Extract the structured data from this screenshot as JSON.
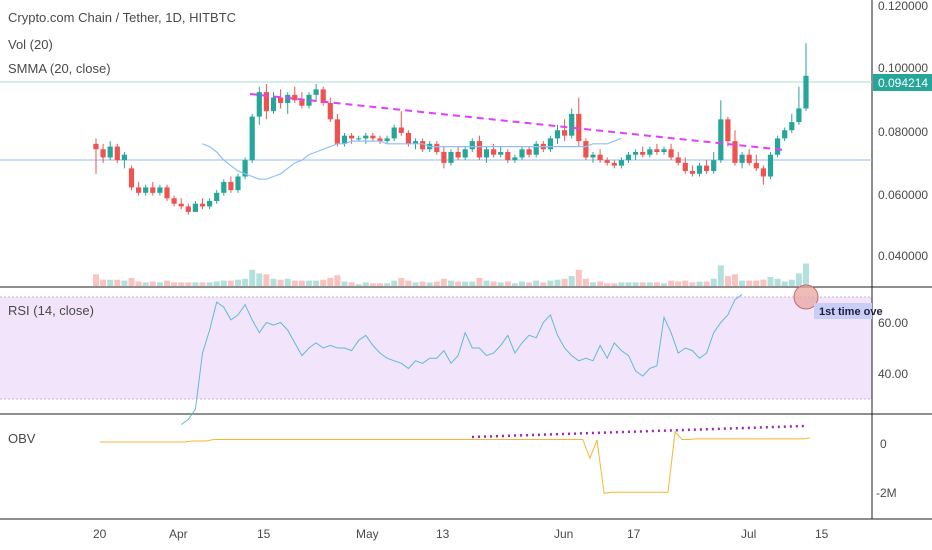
{
  "chart_data": {
    "type": "candlestick",
    "title": "Crypto.com Chain / Tether, 1D, HITBTC",
    "indicators": {
      "volume": "Vol (20)",
      "smma": "SMMA (20, close)",
      "rsi": "RSI (14, close)",
      "obv": "OBV"
    },
    "annotations": {
      "rsi_note": "1st time ove",
      "last_price": "0.094214"
    },
    "price_axis": {
      "ticks": [
        "0.120000",
        "0.100000",
        "0.080000",
        "0.060000",
        "0.040000"
      ],
      "ylim": [
        0.03,
        0.12
      ]
    },
    "rsi_axis": {
      "ticks": [
        "60.00",
        "40.00"
      ],
      "upper_band": 70,
      "lower_band": 30
    },
    "obv_axis": {
      "ticks": [
        "0",
        "-2M"
      ]
    },
    "x_labels": [
      "20",
      "Apr",
      "15",
      "May",
      "13",
      "Jun",
      "17",
      "Jul",
      "15"
    ],
    "colors": {
      "up": "#26a69a",
      "down": "#ef5350",
      "smma": "#90bff9",
      "trend": "#e040fb",
      "rsi_line": "#5fbcd3",
      "rsi_fill": "#f1e4fb",
      "obv_line": "#f7b733",
      "obv_trend": "#9c27b0",
      "price_line": "#a7ddd6"
    },
    "candles": [
      [
        0.069,
        0.071,
        0.058,
        0.067
      ],
      [
        0.067,
        0.069,
        0.062,
        0.064
      ],
      [
        0.064,
        0.07,
        0.063,
        0.068
      ],
      [
        0.068,
        0.069,
        0.062,
        0.063
      ],
      [
        0.063,
        0.066,
        0.06,
        0.065
      ],
      [
        0.06,
        0.061,
        0.052,
        0.053
      ],
      [
        0.053,
        0.055,
        0.05,
        0.051
      ],
      [
        0.051,
        0.054,
        0.05,
        0.053
      ],
      [
        0.053,
        0.055,
        0.05,
        0.051
      ],
      [
        0.051,
        0.054,
        0.05,
        0.053
      ],
      [
        0.053,
        0.054,
        0.048,
        0.049
      ],
      [
        0.049,
        0.05,
        0.046,
        0.047
      ],
      [
        0.047,
        0.049,
        0.045,
        0.046
      ],
      [
        0.046,
        0.047,
        0.043,
        0.044
      ],
      [
        0.044,
        0.048,
        0.044,
        0.047
      ],
      [
        0.047,
        0.049,
        0.045,
        0.046
      ],
      [
        0.046,
        0.049,
        0.045,
        0.048
      ],
      [
        0.048,
        0.052,
        0.047,
        0.051
      ],
      [
        0.051,
        0.056,
        0.05,
        0.055
      ],
      [
        0.055,
        0.057,
        0.051,
        0.052
      ],
      [
        0.052,
        0.058,
        0.051,
        0.057
      ],
      [
        0.057,
        0.064,
        0.056,
        0.063
      ],
      [
        0.063,
        0.08,
        0.062,
        0.079
      ],
      [
        0.079,
        0.09,
        0.076,
        0.088
      ],
      [
        0.088,
        0.091,
        0.078,
        0.081
      ],
      [
        0.081,
        0.088,
        0.08,
        0.086
      ],
      [
        0.086,
        0.089,
        0.082,
        0.084
      ],
      [
        0.084,
        0.088,
        0.08,
        0.087
      ],
      [
        0.087,
        0.09,
        0.084,
        0.085
      ],
      [
        0.085,
        0.088,
        0.082,
        0.083
      ],
      [
        0.083,
        0.088,
        0.082,
        0.087
      ],
      [
        0.087,
        0.091,
        0.085,
        0.089
      ],
      [
        0.089,
        0.09,
        0.083,
        0.084
      ],
      [
        0.084,
        0.086,
        0.077,
        0.078
      ],
      [
        0.078,
        0.08,
        0.068,
        0.069
      ],
      [
        0.069,
        0.073,
        0.068,
        0.072
      ],
      [
        0.072,
        0.073,
        0.069,
        0.071
      ],
      [
        0.071,
        0.072,
        0.07,
        0.071
      ],
      [
        0.071,
        0.073,
        0.069,
        0.072
      ],
      [
        0.072,
        0.073,
        0.07,
        0.071
      ],
      [
        0.071,
        0.072,
        0.069,
        0.07
      ],
      [
        0.07,
        0.072,
        0.069,
        0.071
      ],
      [
        0.071,
        0.076,
        0.07,
        0.075
      ],
      [
        0.075,
        0.081,
        0.072,
        0.073
      ],
      [
        0.073,
        0.074,
        0.068,
        0.069
      ],
      [
        0.069,
        0.071,
        0.067,
        0.07
      ],
      [
        0.07,
        0.071,
        0.066,
        0.067
      ],
      [
        0.067,
        0.07,
        0.066,
        0.069
      ],
      [
        0.069,
        0.07,
        0.065,
        0.066
      ],
      [
        0.066,
        0.068,
        0.06,
        0.062
      ],
      [
        0.062,
        0.067,
        0.061,
        0.066
      ],
      [
        0.066,
        0.068,
        0.063,
        0.064
      ],
      [
        0.064,
        0.068,
        0.063,
        0.067
      ],
      [
        0.067,
        0.071,
        0.066,
        0.07
      ],
      [
        0.07,
        0.072,
        0.063,
        0.064
      ],
      [
        0.064,
        0.068,
        0.062,
        0.067
      ],
      [
        0.067,
        0.069,
        0.064,
        0.065
      ],
      [
        0.065,
        0.068,
        0.064,
        0.066
      ],
      [
        0.066,
        0.067,
        0.062,
        0.063
      ],
      [
        0.063,
        0.065,
        0.062,
        0.064
      ],
      [
        0.064,
        0.068,
        0.063,
        0.067
      ],
      [
        0.067,
        0.068,
        0.064,
        0.065
      ],
      [
        0.065,
        0.07,
        0.064,
        0.069
      ],
      [
        0.069,
        0.07,
        0.066,
        0.067
      ],
      [
        0.067,
        0.072,
        0.066,
        0.071
      ],
      [
        0.071,
        0.076,
        0.069,
        0.074
      ],
      [
        0.074,
        0.078,
        0.07,
        0.072
      ],
      [
        0.072,
        0.082,
        0.071,
        0.08
      ],
      [
        0.08,
        0.086,
        0.068,
        0.07
      ],
      [
        0.07,
        0.071,
        0.063,
        0.064
      ],
      [
        0.064,
        0.066,
        0.062,
        0.065
      ],
      [
        0.065,
        0.067,
        0.062,
        0.063
      ],
      [
        0.063,
        0.064,
        0.061,
        0.062
      ],
      [
        0.062,
        0.063,
        0.06,
        0.061
      ],
      [
        0.061,
        0.064,
        0.06,
        0.063
      ],
      [
        0.063,
        0.066,
        0.062,
        0.065
      ],
      [
        0.065,
        0.067,
        0.063,
        0.066
      ],
      [
        0.066,
        0.068,
        0.064,
        0.065
      ],
      [
        0.065,
        0.068,
        0.064,
        0.067
      ],
      [
        0.067,
        0.069,
        0.065,
        0.066
      ],
      [
        0.066,
        0.068,
        0.065,
        0.067
      ],
      [
        0.067,
        0.069,
        0.063,
        0.064
      ],
      [
        0.064,
        0.066,
        0.061,
        0.062
      ],
      [
        0.062,
        0.064,
        0.058,
        0.059
      ],
      [
        0.059,
        0.061,
        0.057,
        0.058
      ],
      [
        0.058,
        0.062,
        0.057,
        0.061
      ],
      [
        0.061,
        0.063,
        0.058,
        0.059
      ],
      [
        0.059,
        0.066,
        0.058,
        0.063
      ],
      [
        0.063,
        0.085,
        0.062,
        0.078
      ],
      [
        0.078,
        0.079,
        0.068,
        0.07
      ],
      [
        0.07,
        0.074,
        0.061,
        0.062
      ],
      [
        0.062,
        0.066,
        0.06,
        0.065
      ],
      [
        0.065,
        0.067,
        0.061,
        0.062
      ],
      [
        0.062,
        0.065,
        0.059,
        0.06
      ],
      [
        0.06,
        0.061,
        0.054,
        0.057
      ],
      [
        0.057,
        0.066,
        0.056,
        0.065
      ],
      [
        0.065,
        0.072,
        0.064,
        0.071
      ],
      [
        0.071,
        0.075,
        0.07,
        0.074
      ],
      [
        0.074,
        0.08,
        0.073,
        0.077
      ],
      [
        0.077,
        0.09,
        0.076,
        0.082
      ],
      [
        0.082,
        0.106,
        0.081,
        0.094
      ]
    ],
    "smma": [
      0.069,
      0.068,
      0.066,
      0.063,
      0.061,
      0.059,
      0.058,
      0.057,
      0.056,
      0.056,
      0.057,
      0.058,
      0.06,
      0.062,
      0.063,
      0.065,
      0.066,
      0.067,
      0.068,
      0.069,
      0.069,
      0.07,
      0.07,
      0.07,
      0.07,
      0.07,
      0.069,
      0.069,
      0.069,
      0.069,
      0.069,
      0.069,
      0.068,
      0.068,
      0.068,
      0.068,
      0.068,
      0.068,
      0.068,
      0.068,
      0.068,
      0.068,
      0.068,
      0.068,
      0.068,
      0.068,
      0.068,
      0.068,
      0.068,
      0.068,
      0.068,
      0.068,
      0.068,
      0.068,
      0.068,
      0.069,
      0.069,
      0.069,
      0.07,
      0.071
    ],
    "smma_start": 35,
    "rsi": [
      20,
      22,
      26,
      48,
      57,
      68,
      66,
      61,
      63,
      67,
      61,
      56,
      60,
      59,
      60,
      57,
      52,
      47,
      50,
      52,
      50,
      51,
      50,
      50,
      49,
      53,
      55,
      51,
      48,
      46,
      45,
      44,
      42,
      45,
      44,
      46,
      46,
      49,
      44,
      47,
      56,
      50,
      50,
      47,
      48,
      51,
      55,
      48,
      52,
      55,
      54,
      60,
      63,
      55,
      50,
      47,
      45,
      46,
      45,
      51,
      46,
      52,
      49,
      47,
      41,
      39,
      42,
      43,
      62,
      56,
      48,
      50,
      49,
      46,
      48,
      56,
      60,
      63,
      69,
      71
    ],
    "rsi_start": 20,
    "obv": [
      0.0,
      0.0,
      0.0,
      0.0,
      0.0,
      0.0,
      0.0,
      0.0,
      0.0,
      0.0,
      0.0,
      0.0,
      0.0,
      0.05,
      0.05,
      0.05,
      0.12,
      0.12,
      0.12,
      0.12,
      0.12,
      0.12,
      0.12,
      0.12,
      0.12,
      0.12,
      0.12,
      0.12,
      0.12,
      0.12,
      0.12,
      0.12,
      0.12,
      0.12,
      0.12,
      0.12,
      0.12,
      0.12,
      0.12,
      0.12,
      0.12,
      0.12,
      0.12,
      0.12,
      0.12,
      0.12,
      0.12,
      0.12,
      0.12,
      0.12,
      0.12,
      0.12,
      0.12,
      0.12,
      0.12,
      0.12,
      0.12,
      0.12,
      0.12,
      0.12,
      0.12,
      0.12,
      0.12,
      0.12,
      0.12,
      0.12,
      0.12,
      0.12,
      0.12,
      -0.8,
      0.1,
      -2.5,
      -2.45,
      -2.45,
      -2.45,
      -2.45,
      -2.45,
      -2.45,
      -2.45,
      -2.45,
      -2.45,
      0.5,
      0.12,
      0.12,
      0.15,
      0.15,
      0.15,
      0.15,
      0.15,
      0.15,
      0.15,
      0.15,
      0.15,
      0.15,
      0.15,
      0.15,
      0.15,
      0.15,
      0.15,
      0.15,
      0.2
    ],
    "obv_start": 0
  }
}
